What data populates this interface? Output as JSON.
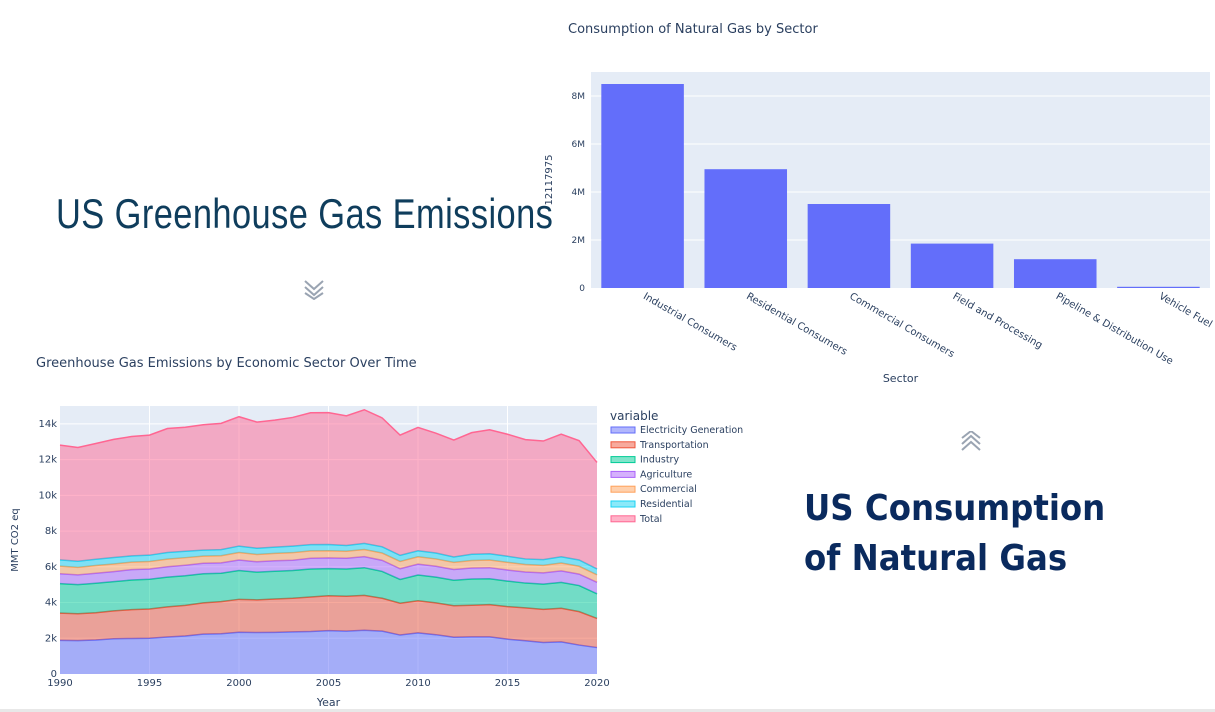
{
  "headline_emissions": "US Greenhouse Gas Emissions",
  "headline_consumption_line1": "US Consumption",
  "headline_consumption_line2": "of Natural Gas",
  "chart_data": [
    {
      "type": "bar",
      "title": "Consumption of Natural Gas by Sector",
      "xlabel": "Sector",
      "ylabel": "12117975",
      "categories": [
        "Industrial Consumers",
        "Residential Consumers",
        "Commercial Consumers",
        "Field and Processing",
        "Pipeline & Distribution Use",
        "Vehicle Fuel"
      ],
      "values": [
        8500000,
        4950000,
        3500000,
        1850000,
        1200000,
        50000
      ],
      "ylim": [
        0,
        9000000
      ],
      "yticks": [
        0,
        2000000,
        4000000,
        6000000,
        8000000
      ],
      "ytick_labels": [
        "0",
        "2M",
        "4M",
        "6M",
        "8M"
      ],
      "bar_color": "#636efa",
      "plot_bg": "#e5ecf6",
      "grid": true
    },
    {
      "type": "area",
      "title": "Greenhouse Gas Emissions by Economic Sector Over Time",
      "xlabel": "Year",
      "ylabel": "MMT CO2 eq",
      "legend_title": "variable",
      "legend_position": "right",
      "xlim": [
        1990,
        2020
      ],
      "ylim": [
        0,
        15000
      ],
      "xticks": [
        1990,
        1995,
        2000,
        2005,
        2010,
        2015,
        2020
      ],
      "yticks": [
        0,
        2000,
        4000,
        6000,
        8000,
        10000,
        12000,
        14000
      ],
      "ytick_labels": [
        "0",
        "2k",
        "4k",
        "6k",
        "8k",
        "10k",
        "12k",
        "14k"
      ],
      "plot_bg": "#e5ecf6",
      "grid": true,
      "stacked": true,
      "x": [
        1990,
        1991,
        1992,
        1993,
        1994,
        1995,
        1996,
        1997,
        1998,
        1999,
        2000,
        2001,
        2002,
        2003,
        2004,
        2005,
        2006,
        2007,
        2008,
        2009,
        2010,
        2011,
        2012,
        2013,
        2014,
        2015,
        2016,
        2017,
        2018,
        2019,
        2020
      ],
      "series": [
        {
          "name": "Electricity Generation",
          "color": "#636efa",
          "values": [
            1880,
            1870,
            1900,
            1970,
            1990,
            2000,
            2070,
            2130,
            2230,
            2250,
            2340,
            2320,
            2330,
            2360,
            2380,
            2430,
            2400,
            2450,
            2400,
            2180,
            2300,
            2200,
            2060,
            2080,
            2080,
            1950,
            1860,
            1760,
            1800,
            1620,
            1480
          ]
        },
        {
          "name": "Transportation",
          "color": "#ef553b",
          "values": [
            1530,
            1500,
            1530,
            1560,
            1610,
            1640,
            1690,
            1710,
            1750,
            1800,
            1840,
            1830,
            1870,
            1880,
            1930,
            1950,
            1950,
            1950,
            1840,
            1780,
            1800,
            1780,
            1760,
            1770,
            1800,
            1820,
            1840,
            1860,
            1880,
            1870,
            1630
          ]
        },
        {
          "name": "Industry",
          "color": "#00cc96",
          "values": [
            1650,
            1630,
            1650,
            1640,
            1660,
            1660,
            1660,
            1660,
            1630,
            1590,
            1610,
            1550,
            1550,
            1550,
            1570,
            1520,
            1530,
            1550,
            1500,
            1330,
            1440,
            1440,
            1430,
            1470,
            1450,
            1430,
            1390,
            1410,
            1450,
            1460,
            1380
          ]
        },
        {
          "name": "Agriculture",
          "color": "#ab63fa",
          "values": [
            550,
            550,
            560,
            560,
            580,
            580,
            580,
            590,
            590,
            580,
            590,
            580,
            590,
            580,
            600,
            600,
            600,
            620,
            620,
            600,
            610,
            610,
            600,
            610,
            620,
            620,
            620,
            630,
            640,
            640,
            640
          ]
        },
        {
          "name": "Commercial",
          "color": "#ffa15a",
          "values": [
            430,
            420,
            430,
            430,
            420,
            420,
            430,
            420,
            400,
            400,
            420,
            410,
            410,
            420,
            410,
            400,
            390,
            400,
            410,
            410,
            410,
            410,
            400,
            420,
            430,
            430,
            420,
            420,
            440,
            440,
            420
          ]
        },
        {
          "name": "Residential",
          "color": "#19d3f3",
          "values": [
            350,
            340,
            350,
            360,
            350,
            350,
            370,
            360,
            330,
            340,
            360,
            350,
            350,
            370,
            350,
            350,
            320,
            340,
            350,
            340,
            340,
            330,
            300,
            350,
            350,
            340,
            310,
            320,
            350,
            350,
            330
          ]
        },
        {
          "name": "Total",
          "color": "#ff6692",
          "values": [
            6420,
            6370,
            6480,
            6610,
            6680,
            6720,
            6940,
            6940,
            7020,
            7070,
            7240,
            7060,
            7110,
            7200,
            7380,
            7380,
            7260,
            7480,
            7210,
            6730,
            6900,
            6710,
            6540,
            6810,
            6940,
            6830,
            6680,
            6640,
            6860,
            6680,
            5960
          ]
        }
      ]
    }
  ]
}
